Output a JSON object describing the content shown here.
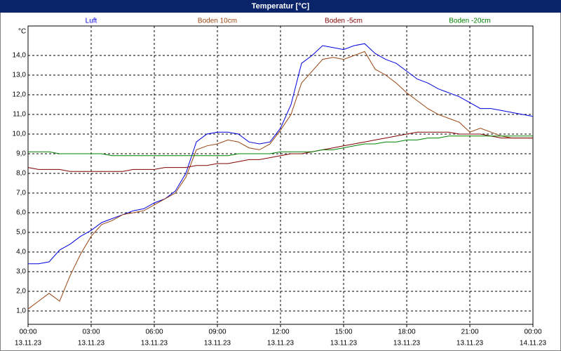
{
  "chart_data": {
    "type": "line",
    "title": "Temperatur [°C]",
    "y_unit": "°C",
    "x": [
      0,
      0.5,
      1,
      1.5,
      2,
      2.5,
      3,
      3.5,
      4,
      4.5,
      5,
      5.5,
      6,
      6.5,
      7,
      7.5,
      8,
      8.5,
      9,
      9.5,
      10,
      10.5,
      11,
      11.5,
      12,
      12.5,
      13,
      13.5,
      14,
      14.5,
      15,
      15.5,
      16,
      16.5,
      17,
      17.5,
      18,
      18.5,
      19,
      19.5,
      20,
      20.5,
      21,
      21.5,
      22,
      22.5,
      23,
      23.5,
      24
    ],
    "series": [
      {
        "name": "Luft",
        "color": "#0000e0",
        "values": [
          3.4,
          3.4,
          3.5,
          4.1,
          4.4,
          4.8,
          5.1,
          5.5,
          5.7,
          5.9,
          6.1,
          6.2,
          6.5,
          6.7,
          7.1,
          8.0,
          9.6,
          10.0,
          10.1,
          10.1,
          10.0,
          9.6,
          9.5,
          9.6,
          10.3,
          11.5,
          13.6,
          14.0,
          14.5,
          14.4,
          14.3,
          14.5,
          14.6,
          14.1,
          13.8,
          13.6,
          13.2,
          12.8,
          12.6,
          12.3,
          12.1,
          11.9,
          11.6,
          11.3,
          11.3,
          11.2,
          11.1,
          11.0,
          10.9
        ]
      },
      {
        "name": "Boden 10cm",
        "color": "#994411",
        "values": [
          1.1,
          1.5,
          1.9,
          1.5,
          2.8,
          3.9,
          4.8,
          5.4,
          5.6,
          5.9,
          6.0,
          6.1,
          6.4,
          6.7,
          7.0,
          7.8,
          9.2,
          9.4,
          9.5,
          9.7,
          9.6,
          9.3,
          9.2,
          9.5,
          10.2,
          11.0,
          12.6,
          13.2,
          13.8,
          13.9,
          13.8,
          14.0,
          14.2,
          13.3,
          13.0,
          12.6,
          12.1,
          11.7,
          11.3,
          11.0,
          10.8,
          10.6,
          10.1,
          10.3,
          10.1,
          9.9,
          9.8,
          9.8,
          9.8
        ]
      },
      {
        "name": "Boden -5cm",
        "color": "#800000",
        "values": [
          8.3,
          8.2,
          8.2,
          8.2,
          8.1,
          8.1,
          8.1,
          8.1,
          8.1,
          8.1,
          8.2,
          8.2,
          8.2,
          8.3,
          8.3,
          8.3,
          8.4,
          8.4,
          8.5,
          8.5,
          8.6,
          8.7,
          8.7,
          8.8,
          8.9,
          9.0,
          9.0,
          9.1,
          9.2,
          9.3,
          9.4,
          9.5,
          9.6,
          9.7,
          9.8,
          9.9,
          10.0,
          10.1,
          10.1,
          10.1,
          10.1,
          10.0,
          10.0,
          10.0,
          9.9,
          9.8,
          9.8,
          9.8,
          9.8
        ]
      },
      {
        "name": "Boden -20cm",
        "color": "#008000",
        "values": [
          9.1,
          9.1,
          9.1,
          9.0,
          9.0,
          9.0,
          9.0,
          9.0,
          8.9,
          8.9,
          8.9,
          8.9,
          8.9,
          8.9,
          8.9,
          8.9,
          8.9,
          8.9,
          8.9,
          8.9,
          9.0,
          9.0,
          9.0,
          9.0,
          9.1,
          9.1,
          9.1,
          9.1,
          9.2,
          9.2,
          9.3,
          9.4,
          9.5,
          9.5,
          9.6,
          9.6,
          9.7,
          9.7,
          9.8,
          9.8,
          9.9,
          9.9,
          9.9,
          9.9,
          9.9,
          9.9,
          9.9,
          9.9,
          9.9
        ]
      }
    ],
    "xlim": [
      0,
      24
    ],
    "xticks": [
      {
        "value": 0,
        "label": "00:00"
      },
      {
        "value": 3,
        "label": "03:00"
      },
      {
        "value": 6,
        "label": "06:00"
      },
      {
        "value": 9,
        "label": "09:00"
      },
      {
        "value": 12,
        "label": "12:00"
      },
      {
        "value": 15,
        "label": "15:00"
      },
      {
        "value": 18,
        "label": "18:00"
      },
      {
        "value": 21,
        "label": "21:00"
      },
      {
        "value": 24,
        "label": "00:00"
      }
    ],
    "xtick_dates": [
      "13.11.23",
      "13.11.23",
      "13.11.23",
      "13.11.23",
      "13.11.23",
      "13.11.23",
      "13.11.23",
      "13.11.23",
      "14.11.23"
    ],
    "ylim": [
      0.32,
      15.5
    ],
    "yticks": [
      {
        "value": 1,
        "label": "1,0"
      },
      {
        "value": 2,
        "label": "2,0"
      },
      {
        "value": 3,
        "label": "3,0"
      },
      {
        "value": 4,
        "label": "4,0"
      },
      {
        "value": 5,
        "label": "5,0"
      },
      {
        "value": 6,
        "label": "6,0"
      },
      {
        "value": 7,
        "label": "7,0"
      },
      {
        "value": 8,
        "label": "8,0"
      },
      {
        "value": 9,
        "label": "9,0"
      },
      {
        "value": 10,
        "label": "10,0"
      },
      {
        "value": 11,
        "label": "11,0"
      },
      {
        "value": 12,
        "label": "12,0"
      },
      {
        "value": 13,
        "label": "13,0"
      },
      {
        "value": 14,
        "label": "14,0"
      }
    ],
    "grid": true
  }
}
